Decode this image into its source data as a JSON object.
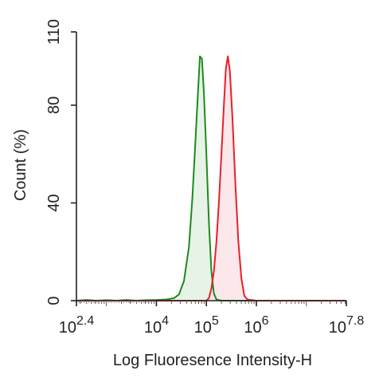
{
  "chart_data": {
    "type": "area",
    "title": "",
    "xlabel": "Log Fluoresence Intensity-H",
    "ylabel": "Count  (%)",
    "x_scale": "log10",
    "xlim": [
      2.4,
      7.8
    ],
    "ylim": [
      0,
      110
    ],
    "x_ticks": [
      {
        "base": "10",
        "exp": "2.4",
        "value": 2.4
      },
      {
        "base": "10",
        "exp": "4",
        "value": 4
      },
      {
        "base": "10",
        "exp": "5",
        "value": 5
      },
      {
        "base": "10",
        "exp": "6",
        "value": 6
      },
      {
        "base": "10",
        "exp": "7.8",
        "value": 7.8
      }
    ],
    "y_ticks": [
      {
        "label": "0",
        "value": 0
      },
      {
        "label": "40",
        "value": 40
      },
      {
        "label": "80",
        "value": 80
      },
      {
        "label": "110",
        "value": 110
      }
    ],
    "grid": false,
    "legend": "none",
    "series": [
      {
        "color": "#1e8a1e",
        "fill": "#e3f1e3",
        "points": [
          [
            2.4,
            0
          ],
          [
            2.6,
            0.3
          ],
          [
            2.8,
            0
          ],
          [
            3.0,
            0.2
          ],
          [
            3.2,
            0
          ],
          [
            3.4,
            0.3
          ],
          [
            3.6,
            0
          ],
          [
            3.8,
            0.2
          ],
          [
            4.0,
            0.3
          ],
          [
            4.2,
            0.5
          ],
          [
            4.35,
            1.0
          ],
          [
            4.45,
            2.5
          ],
          [
            4.55,
            8.0
          ],
          [
            4.65,
            22.0
          ],
          [
            4.72,
            42.0
          ],
          [
            4.78,
            65.0
          ],
          [
            4.83,
            85.0
          ],
          [
            4.87,
            100.0
          ],
          [
            4.91,
            99.0
          ],
          [
            4.95,
            85.0
          ],
          [
            5.0,
            60.0
          ],
          [
            5.05,
            32.0
          ],
          [
            5.1,
            12.0
          ],
          [
            5.15,
            3.0
          ],
          [
            5.2,
            0.5
          ],
          [
            5.3,
            0
          ],
          [
            5.6,
            0
          ],
          [
            6.0,
            0
          ],
          [
            7.8,
            0
          ]
        ]
      },
      {
        "color": "#e8202a",
        "fill": "#fbe3e6",
        "points": [
          [
            2.4,
            0
          ],
          [
            4.6,
            0
          ],
          [
            5.0,
            0
          ],
          [
            5.05,
            1.0
          ],
          [
            5.1,
            5.0
          ],
          [
            5.15,
            12.0
          ],
          [
            5.2,
            24.0
          ],
          [
            5.25,
            40.0
          ],
          [
            5.3,
            60.0
          ],
          [
            5.35,
            80.0
          ],
          [
            5.39,
            95.0
          ],
          [
            5.43,
            100.0
          ],
          [
            5.47,
            94.0
          ],
          [
            5.52,
            75.0
          ],
          [
            5.58,
            48.0
          ],
          [
            5.64,
            24.0
          ],
          [
            5.7,
            9.0
          ],
          [
            5.76,
            2.0
          ],
          [
            5.82,
            0.5
          ],
          [
            6.0,
            0
          ],
          [
            7.8,
            0
          ]
        ]
      }
    ]
  }
}
